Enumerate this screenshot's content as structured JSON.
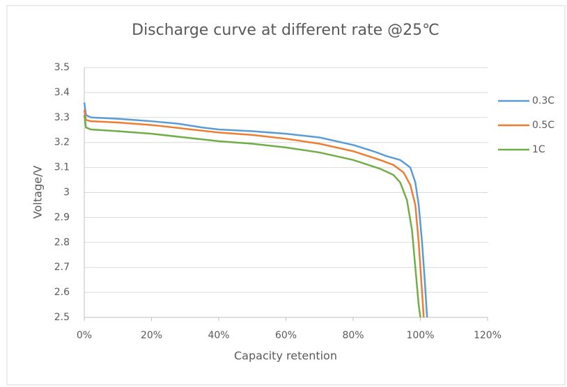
{
  "chart_data": {
    "type": "line",
    "title": "Discharge curve at different rate @25℃",
    "xlabel": "Capacity retention",
    "ylabel": "Voltage/V",
    "xlim": [
      0,
      120
    ],
    "xticks": [
      {
        "value": 0,
        "label": "0%"
      },
      {
        "value": 20,
        "label": "20%"
      },
      {
        "value": 40,
        "label": "40%"
      },
      {
        "value": 60,
        "label": "60%"
      },
      {
        "value": 80,
        "label": "80%"
      },
      {
        "value": 100,
        "label": "100%"
      },
      {
        "value": 120,
        "label": "120%"
      }
    ],
    "ylim": [
      2.5,
      3.5
    ],
    "yticks": [
      2.5,
      2.6,
      2.7,
      2.8,
      2.9,
      3,
      3.1,
      3.2,
      3.3,
      3.4,
      3.5
    ],
    "grid": true,
    "legend": "right",
    "series": [
      {
        "name": "0.3C",
        "color": "#5b9bd5",
        "x": [
          0,
          0.5,
          2,
          10,
          20,
          28,
          35,
          40,
          50,
          60,
          70,
          80,
          86,
          90,
          94,
          96,
          97,
          98.5,
          99.5,
          100.5,
          101.3,
          102
        ],
        "values": [
          3.36,
          3.31,
          3.3,
          3.295,
          3.285,
          3.275,
          3.26,
          3.252,
          3.245,
          3.235,
          3.22,
          3.19,
          3.165,
          3.145,
          3.13,
          3.11,
          3.1,
          3.04,
          2.95,
          2.8,
          2.65,
          2.5
        ]
      },
      {
        "name": "0.5C",
        "color": "#ed7d31",
        "x": [
          0,
          0.5,
          2,
          10,
          20,
          30,
          40,
          50,
          60,
          70,
          80,
          88,
          92,
          95,
          97,
          98.5,
          99.5,
          100.5,
          101
        ],
        "values": [
          3.33,
          3.29,
          3.285,
          3.28,
          3.27,
          3.255,
          3.24,
          3.23,
          3.215,
          3.195,
          3.165,
          3.13,
          3.11,
          3.08,
          3.03,
          2.95,
          2.8,
          2.6,
          2.5
        ]
      },
      {
        "name": "1C",
        "color": "#70ad47",
        "x": [
          0,
          0.5,
          2,
          10,
          20,
          30,
          40,
          50,
          60,
          70,
          80,
          88,
          92,
          94,
          96,
          97.5,
          98.5,
          99.5,
          100
        ],
        "values": [
          3.31,
          3.26,
          3.252,
          3.245,
          3.235,
          3.22,
          3.205,
          3.195,
          3.18,
          3.16,
          3.13,
          3.095,
          3.07,
          3.04,
          2.97,
          2.85,
          2.7,
          2.55,
          2.5
        ]
      }
    ]
  }
}
